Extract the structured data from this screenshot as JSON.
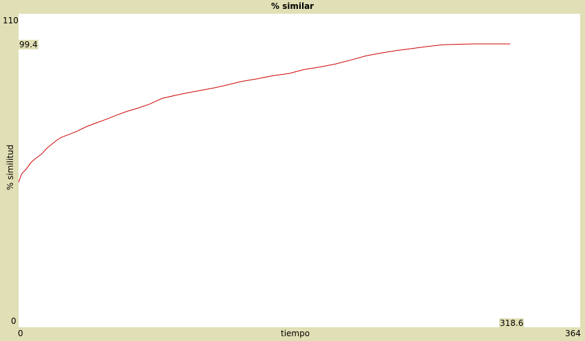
{
  "title": "% similar",
  "chart_data": {
    "type": "line",
    "title": "% similar",
    "xlabel": "tiempo",
    "ylabel": "% similitud",
    "xlim": [
      0,
      364
    ],
    "ylim": [
      0,
      110
    ],
    "x_min_label": "0",
    "x_max_label": "364",
    "y_min_label": "0",
    "y_max_label": "110",
    "current_y_label": "99.4",
    "current_x_label": "318.6",
    "line_color": "#cc0000",
    "grid": false,
    "series": [
      {
        "points": [
          [
            0,
            50.8
          ],
          [
            2,
            53.8
          ],
          [
            5,
            55.5
          ],
          [
            8,
            57.8
          ],
          [
            11,
            59.2
          ],
          [
            15,
            60.8
          ],
          [
            18,
            62.6
          ],
          [
            21,
            64.0
          ],
          [
            25,
            65.7
          ],
          [
            28,
            66.7
          ],
          [
            33,
            67.7
          ],
          [
            38,
            68.8
          ],
          [
            44,
            70.4
          ],
          [
            50,
            71.6
          ],
          [
            57,
            73.0
          ],
          [
            63,
            74.3
          ],
          [
            70,
            75.7
          ],
          [
            77,
            76.8
          ],
          [
            85,
            78.3
          ],
          [
            93,
            80.3
          ],
          [
            102,
            81.4
          ],
          [
            110,
            82.3
          ],
          [
            118,
            83.1
          ],
          [
            127,
            84.0
          ],
          [
            135,
            85.0
          ],
          [
            145,
            86.3
          ],
          [
            155,
            87.2
          ],
          [
            165,
            88.3
          ],
          [
            175,
            89.0
          ],
          [
            185,
            90.4
          ],
          [
            195,
            91.3
          ],
          [
            205,
            92.3
          ],
          [
            215,
            93.7
          ],
          [
            225,
            95.2
          ],
          [
            235,
            96.2
          ],
          [
            245,
            97.1
          ],
          [
            255,
            97.8
          ],
          [
            265,
            98.5
          ],
          [
            275,
            99.1
          ],
          [
            285,
            99.3
          ],
          [
            295,
            99.4
          ],
          [
            305,
            99.4
          ],
          [
            312,
            99.4
          ],
          [
            318.6,
            99.4
          ]
        ]
      }
    ]
  }
}
